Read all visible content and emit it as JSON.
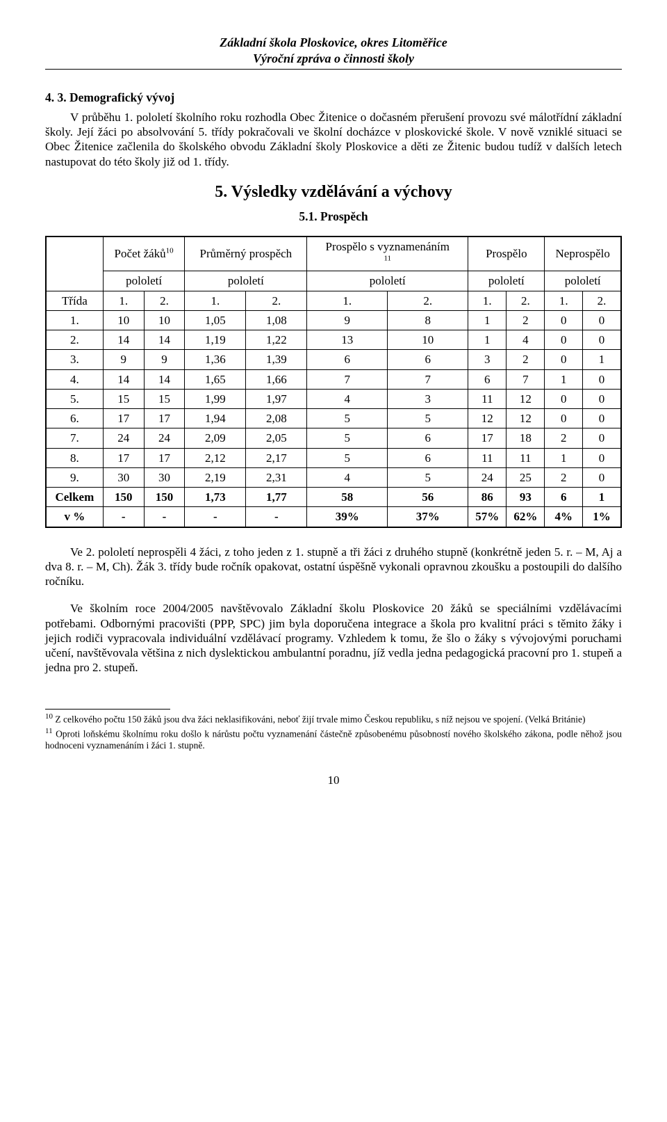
{
  "header": {
    "line1": "Základní škola Ploskovice, okres Litoměřice",
    "line2": "Výroční zpráva o činnosti školy"
  },
  "section43": {
    "title": "4. 3. Demografický vývoj",
    "para": "V průběhu 1. pololetí školního roku rozhodla Obec Žitenice o dočasném přerušení provozu své málotřídní základní školy. Její žáci po absolvování 5. třídy pokračovali ve školní docházce v ploskovické škole.  V nově vzniklé situaci  se Obec Žitenice začlenila do školského obvodu Základní školy Ploskovice a děti ze Žitenic budou tudíž v dalších letech nastupovat do této školy již od 1. třídy."
  },
  "section5": {
    "heading": "5. Výsledky vzdělávání a výchovy",
    "sub": "5.1. Prospěch"
  },
  "table": {
    "head": {
      "pocet": "Počet žáků",
      "pocet_fn": "10",
      "prumer": "Průměrný prospěch",
      "prospelo_vyzn": "Prospělo s vyznamenáním",
      "prospelo_vyzn_fn": "11",
      "prospelo": "Prospělo",
      "neprospelo": "Neprospělo",
      "trida": "Třída",
      "pololeti": "pololetí",
      "col1": "1.",
      "col2": "2."
    },
    "rows": [
      {
        "label": "1.",
        "c": [
          "10",
          "10",
          "1,05",
          "1,08",
          "9",
          "8",
          "1",
          "2",
          "0",
          "0"
        ]
      },
      {
        "label": "2.",
        "c": [
          "14",
          "14",
          "1,19",
          "1,22",
          "13",
          "10",
          "1",
          "4",
          "0",
          "0"
        ]
      },
      {
        "label": "3.",
        "c": [
          "9",
          "9",
          "1,36",
          "1,39",
          "6",
          "6",
          "3",
          "2",
          "0",
          "1"
        ]
      },
      {
        "label": "4.",
        "c": [
          "14",
          "14",
          "1,65",
          "1,66",
          "7",
          "7",
          "6",
          "7",
          "1",
          "0"
        ]
      },
      {
        "label": "5.",
        "c": [
          "15",
          "15",
          "1,99",
          "1,97",
          "4",
          "3",
          "11",
          "12",
          "0",
          "0"
        ]
      },
      {
        "label": "6.",
        "c": [
          "17",
          "17",
          "1,94",
          "2,08",
          "5",
          "5",
          "12",
          "12",
          "0",
          "0"
        ]
      },
      {
        "label": "7.",
        "c": [
          "24",
          "24",
          "2,09",
          "2,05",
          "5",
          "6",
          "17",
          "18",
          "2",
          "0"
        ]
      },
      {
        "label": "8.",
        "c": [
          "17",
          "17",
          "2,12",
          "2,17",
          "5",
          "6",
          "11",
          "11",
          "1",
          "0"
        ]
      },
      {
        "label": "9.",
        "c": [
          "30",
          "30",
          "2,19",
          "2,31",
          "4",
          "5",
          "24",
          "25",
          "2",
          "0"
        ]
      }
    ],
    "totals": {
      "celkem_label": "Celkem",
      "celkem": [
        "150",
        "150",
        "1,73",
        "1,77",
        "58",
        "56",
        "86",
        "93",
        "6",
        "1"
      ],
      "pct_label": "v %",
      "pct": [
        "-",
        "-",
        "-",
        "-",
        "39%",
        "37%",
        "57%",
        "62%",
        "4%",
        "1%"
      ]
    }
  },
  "para_after1": "Ve 2. pololetí neprospěli 4 žáci, z toho jeden z 1. stupně a tři žáci z druhého stupně (konkrétně jeden  5. r. – M, Aj a dva  8. r. – M, Ch). Žák 3. třídy bude ročník opakovat, ostatní úspěšně vykonali opravnou zkoušku a postoupili do dalšího ročníku.",
  "para_after2": "Ve školním roce 2004/2005 navštěvovalo Základní školu Ploskovice 20 žáků se speciálními vzdělávacími potřebami. Odbornými pracovišti (PPP, SPC) jim byla doporučena integrace a škola pro kvalitní práci s těmito žáky i jejich rodiči vypracovala individuální vzdělávací programy.  Vzhledem k tomu, že šlo o žáky s vývojovými poruchami učení, navštěvovala většina z nich dyslektickou ambulantní poradnu, jíž vedla jedna pedagogická pracovní pro 1. stupeň a jedna pro 2. stupeň.",
  "footnotes": {
    "fn10": "Z celkového počtu 150 žáků jsou dva žáci neklasifikováni, neboť žijí trvale mimo Českou republiku, s níž nejsou ve spojení. (Velká Británie)",
    "fn11": "Oproti loňskému školnímu roku došlo k nárůstu počtu vyznamenání částečně způsobenému působností nového školského zákona, podle něhož jsou hodnoceni vyznamenáním i žáci 1. stupně."
  },
  "page_number": "10"
}
